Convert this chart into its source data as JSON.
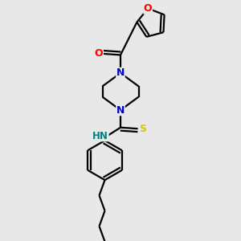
{
  "background_color": "#e8e8e8",
  "bond_color": "#000000",
  "atom_colors": {
    "O": "#ff0000",
    "N": "#0000cc",
    "S": "#cccc00",
    "NH": "#008080",
    "C": "#000000"
  },
  "figsize": [
    3.0,
    3.0
  ],
  "dpi": 100,
  "xlim": [
    0,
    10
  ],
  "ylim": [
    0,
    10
  ]
}
